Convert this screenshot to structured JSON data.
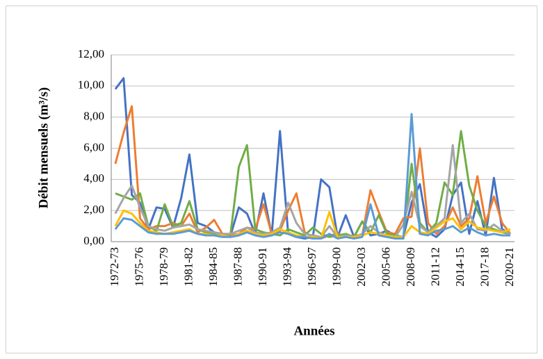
{
  "chart_data": {
    "type": "line",
    "x_label": "Années",
    "y_label": "Débit mensuels (m³/s)",
    "categories": [
      "1972-73",
      null,
      null,
      "1975-76",
      null,
      null,
      "1978-79",
      null,
      null,
      "1981-82",
      null,
      null,
      "1984-85",
      null,
      null,
      "1987-88",
      null,
      null,
      "1990-91",
      null,
      null,
      "1993-94",
      null,
      null,
      "1996-97",
      null,
      null,
      "1999-00",
      null,
      null,
      "2002-03",
      null,
      null,
      "2005-06",
      null,
      null,
      "2008-09",
      null,
      null,
      "2011-12",
      null,
      null,
      "2014-15",
      null,
      null,
      "2017-18",
      null,
      null,
      "2020-21"
    ],
    "series": [
      {
        "color": "#4472c4",
        "values": [
          9.8,
          10.5,
          3.0,
          2.5,
          0.8,
          2.2,
          2.1,
          0.9,
          2.8,
          5.6,
          1.2,
          1.0,
          0.6,
          0.5,
          0.4,
          2.2,
          1.8,
          0.5,
          3.1,
          0.4,
          7.1,
          0.5,
          0.3,
          0.2,
          0.3,
          4.0,
          3.5,
          0.3,
          1.7,
          0.3,
          1.3,
          0.4,
          0.5,
          0.7,
          0.4,
          0.3,
          2.5,
          3.7,
          0.6,
          0.3,
          0.8,
          3.0,
          3.8,
          0.5,
          2.6,
          0.4,
          4.1,
          0.8,
          0.5
        ]
      },
      {
        "color": "#ed7d31",
        "values": [
          5.0,
          7.0,
          8.7,
          1.5,
          0.8,
          1.0,
          1.0,
          1.2,
          1.0,
          1.8,
          0.6,
          0.9,
          1.4,
          0.5,
          0.4,
          0.5,
          0.9,
          0.8,
          2.4,
          0.5,
          0.7,
          2.0,
          3.1,
          0.6,
          0.3,
          0.2,
          0.4,
          0.5,
          0.3,
          0.4,
          0.4,
          3.3,
          1.9,
          0.6,
          0.5,
          1.5,
          1.6,
          6.0,
          1.2,
          0.5,
          1.0,
          2.2,
          1.0,
          1.5,
          4.2,
          1.2,
          2.9,
          1.2,
          0.5
        ]
      },
      {
        "color": "#70ad47",
        "values": [
          3.1,
          2.9,
          2.7,
          3.1,
          1.0,
          0.7,
          2.4,
          1.0,
          1.2,
          2.6,
          0.8,
          0.6,
          0.5,
          0.4,
          0.5,
          4.8,
          6.2,
          0.8,
          0.6,
          0.5,
          0.4,
          0.8,
          0.6,
          0.4,
          0.9,
          0.5,
          0.3,
          0.4,
          0.5,
          0.3,
          1.3,
          0.6,
          1.7,
          0.5,
          0.4,
          0.3,
          5.0,
          1.2,
          0.6,
          1.2,
          3.8,
          3.0,
          7.1,
          3.6,
          2.0,
          1.0,
          0.8,
          0.6,
          0.5
        ]
      },
      {
        "color": "#a5a5a5",
        "values": [
          1.8,
          2.8,
          3.6,
          2.2,
          1.0,
          0.8,
          0.7,
          0.9,
          1.0,
          1.1,
          0.8,
          0.7,
          0.6,
          0.5,
          0.5,
          0.7,
          0.9,
          0.6,
          0.5,
          0.6,
          0.9,
          2.5,
          1.2,
          0.5,
          0.4,
          0.3,
          1.0,
          0.3,
          0.4,
          0.3,
          0.5,
          1.0,
          0.6,
          0.4,
          0.3,
          1.1,
          3.2,
          1.0,
          0.6,
          1.0,
          1.5,
          6.2,
          1.2,
          1.8,
          0.8,
          0.7,
          1.1,
          0.7,
          0.5
        ]
      },
      {
        "color": "#ffc000",
        "values": [
          1.0,
          2.0,
          1.8,
          1.2,
          0.7,
          0.6,
          0.5,
          0.6,
          0.7,
          0.8,
          0.5,
          0.5,
          0.4,
          0.4,
          0.3,
          0.5,
          0.7,
          0.5,
          0.4,
          0.5,
          0.8,
          0.6,
          0.4,
          0.3,
          0.3,
          0.2,
          1.9,
          0.3,
          0.3,
          0.3,
          0.4,
          0.6,
          0.5,
          0.4,
          0.3,
          0.3,
          1.0,
          0.6,
          0.5,
          0.9,
          1.3,
          1.5,
          0.8,
          1.3,
          0.9,
          0.8,
          0.7,
          0.6,
          0.8
        ]
      },
      {
        "color": "#5b9bd5",
        "values": [
          0.8,
          1.5,
          1.4,
          1.0,
          0.6,
          0.5,
          0.5,
          0.5,
          0.6,
          0.7,
          0.5,
          0.4,
          0.4,
          0.3,
          0.3,
          0.4,
          0.6,
          0.4,
          0.3,
          0.4,
          0.6,
          0.5,
          0.3,
          0.3,
          0.2,
          0.2,
          0.5,
          0.2,
          0.3,
          0.2,
          0.3,
          2.4,
          0.4,
          0.3,
          0.2,
          0.2,
          8.2,
          0.5,
          0.4,
          0.7,
          0.8,
          1.0,
          0.6,
          0.9,
          0.6,
          0.4,
          0.5,
          0.4,
          0.4
        ]
      }
    ],
    "ylim": [
      0,
      12
    ],
    "yticks": [
      {
        "value": 0,
        "label": "0,00"
      },
      {
        "value": 2,
        "label": "2,00"
      },
      {
        "value": 4,
        "label": "4,00"
      },
      {
        "value": 6,
        "label": "6,00"
      },
      {
        "value": 8,
        "label": "8,00"
      },
      {
        "value": 10,
        "label": "10,00"
      },
      {
        "value": 12,
        "label": "12,00"
      }
    ],
    "grid": true
  }
}
